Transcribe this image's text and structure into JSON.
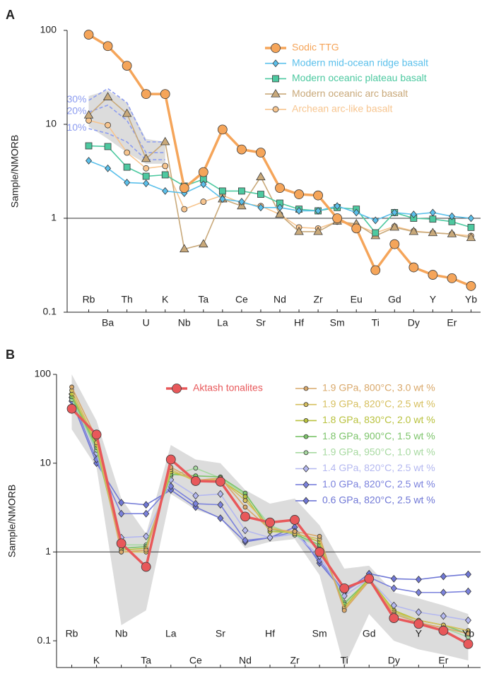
{
  "chart_data": [
    {
      "type": "line",
      "panel_label": "A",
      "y_label": "Sample/NMORB",
      "log_y": true,
      "ylim": [
        0.1,
        100
      ],
      "yticks": [
        0.1,
        1,
        10,
        100
      ],
      "reference_line": 1,
      "categories": [
        "Rb",
        "Ba",
        "Th",
        "U",
        "K",
        "Nb",
        "Ta",
        "La",
        "Ce",
        "Sr",
        "Nd",
        "Hf",
        "Zr",
        "Sm",
        "Eu",
        "Ti",
        "Gd",
        "Dy",
        "Y",
        "Er",
        "Yb"
      ],
      "band": {
        "color": "#dcdcdc",
        "lower": [
          9.5,
          7,
          5,
          3.8,
          3.8,
          null,
          null,
          null,
          null,
          null,
          null,
          null,
          null,
          null,
          null,
          null,
          null,
          null,
          null,
          null,
          null
        ],
        "upper": [
          20,
          23,
          17,
          7,
          6.5,
          null,
          null,
          null,
          null,
          null,
          null,
          null,
          null,
          null,
          null,
          null,
          null,
          null,
          null,
          null,
          null
        ]
      },
      "melt_curves": [
        {
          "name": "30%",
          "color": "#8c9cf0",
          "values": [
            18,
            24,
            17,
            6.5,
            6.5,
            null,
            null,
            null,
            null,
            null,
            null,
            null,
            null,
            null,
            null,
            null,
            null,
            null,
            null,
            null,
            null
          ]
        },
        {
          "name": "20%",
          "color": "#8c9cf0",
          "values": [
            13.5,
            16,
            11,
            5,
            5,
            null,
            null,
            null,
            null,
            null,
            null,
            null,
            null,
            null,
            null,
            null,
            null,
            null,
            null,
            null,
            null
          ]
        },
        {
          "name": "10%",
          "color": "#8c9cf0",
          "values": [
            9,
            8,
            6.5,
            4.2,
            4.2,
            null,
            null,
            null,
            null,
            null,
            null,
            null,
            null,
            null,
            null,
            null,
            null,
            null,
            null,
            null,
            null
          ]
        }
      ],
      "series": [
        {
          "name": "Sodic TTG",
          "color": "#f5a55a",
          "marker": "circle",
          "emphasis": true,
          "values": [
            90,
            68,
            42,
            21,
            21,
            2.1,
            3.1,
            8.8,
            5.4,
            5.0,
            2.1,
            1.8,
            1.75,
            1.0,
            0.78,
            0.28,
            0.53,
            0.3,
            0.25,
            0.23,
            0.19
          ]
        },
        {
          "name": "Modern mid-ocean ridge basalt",
          "color": "#5bc0eb",
          "marker": "diamond",
          "emphasis": false,
          "values": [
            4.1,
            3.4,
            2.4,
            2.35,
            1.95,
            1.85,
            2.3,
            1.6,
            1.5,
            1.3,
            1.3,
            1.2,
            1.2,
            1.35,
            1.15,
            0.95,
            1.15,
            1.1,
            1.15,
            1.05,
            1.0
          ]
        },
        {
          "name": "Modern oceanic plateau basalt",
          "color": "#4dc9a0",
          "marker": "square",
          "emphasis": false,
          "values": [
            5.9,
            5.8,
            3.5,
            2.8,
            2.9,
            2.2,
            2.6,
            1.95,
            1.95,
            1.8,
            1.45,
            1.25,
            1.2,
            1.3,
            1.25,
            0.7,
            1.15,
            1.0,
            0.98,
            0.92,
            0.8
          ]
        },
        {
          "name": "Modern oceanic arc basalt",
          "color": "#c9a97a",
          "marker": "triangle",
          "emphasis": false,
          "values": [
            12.5,
            19.5,
            13,
            4.3,
            6.5,
            0.47,
            0.53,
            1.6,
            1.35,
            2.75,
            1.1,
            0.72,
            0.72,
            0.93,
            0.87,
            0.65,
            0.8,
            0.72,
            0.7,
            0.68,
            0.62
          ]
        },
        {
          "name": "Archean arc-like basalt",
          "color": "#f7c58f",
          "marker": "circle",
          "emphasis": false,
          "values": [
            11,
            9.8,
            5.0,
            3.4,
            3.6,
            1.25,
            1.5,
            1.75,
            1.45,
            1.35,
            1.1,
            0.8,
            0.78,
            0.92,
            0.85,
            0.7,
            0.82,
            0.73,
            0.7,
            0.68,
            0.65
          ]
        }
      ]
    },
    {
      "type": "line",
      "panel_label": "B",
      "y_label": "Sample/NMORB",
      "log_y": true,
      "ylim": [
        0.05,
        100
      ],
      "yticks": [
        0.1,
        1,
        10,
        100
      ],
      "reference_line": 1,
      "categories": [
        "Rb",
        "K",
        "Nb",
        "Ta",
        "La",
        "Ce",
        "Sr",
        "Nd",
        "Hf",
        "Zr",
        "Sm",
        "Ti",
        "Gd",
        "Dy",
        "Y",
        "Er",
        "Yb"
      ],
      "band": {
        "color": "#dcdcdc",
        "lower": [
          24,
          9,
          0.15,
          0.22,
          4.5,
          3.0,
          2.4,
          1.1,
          1.3,
          1.4,
          0.55,
          0.05,
          0.2,
          0.1,
          0.08,
          0.07,
          0.06
        ],
        "upper": [
          100,
          30,
          4,
          1.6,
          16,
          11,
          10,
          5,
          3.5,
          4,
          2.0,
          0.65,
          0.7,
          0.35,
          0.3,
          0.25,
          0.2
        ]
      },
      "series": [
        {
          "name": "Aktash tonalites",
          "color": "#e8585a",
          "marker": "circle",
          "emphasis": true,
          "values": [
            41,
            21,
            1.25,
            0.68,
            11,
            6.3,
            6.2,
            2.5,
            2.15,
            2.3,
            1.0,
            0.39,
            0.5,
            0.18,
            0.155,
            0.13,
            0.092
          ]
        },
        {
          "name": "1.9 GPa, 800°C, 3.0 wt %",
          "color": "#d9a86a",
          "marker": "circle",
          "emphasis": false,
          "values": [
            72,
            19,
            1.0,
            1.05,
            9,
            6.4,
            6.8,
            3.2,
            1.8,
            1.7,
            1.5,
            0.22,
            0.47,
            0.2,
            0.16,
            0.14,
            0.12
          ]
        },
        {
          "name": "1.9 GPa, 820°C, 2.5 wt %",
          "color": "#d6bf5e",
          "marker": "circle",
          "emphasis": false,
          "values": [
            66,
            17,
            1.0,
            1.0,
            8.5,
            6.2,
            6.6,
            3.8,
            1.9,
            1.6,
            1.4,
            0.23,
            0.48,
            0.21,
            0.17,
            0.15,
            0.13
          ]
        },
        {
          "name": "1.8 GPa, 830°C, 2.0 wt %",
          "color": "#b9c23e",
          "marker": "circle",
          "emphasis": false,
          "values": [
            60,
            16,
            1.05,
            1.1,
            8.0,
            6.5,
            6.5,
            4.2,
            1.7,
            1.65,
            1.3,
            0.24,
            0.5,
            0.22,
            0.17,
            0.15,
            0.13
          ]
        },
        {
          "name": "1.8 GPa, 900°C, 1.5 wt %",
          "color": "#7cc46a",
          "marker": "circle",
          "emphasis": false,
          "values": [
            56,
            15,
            1.1,
            1.15,
            7.5,
            7.2,
            7.0,
            4.6,
            1.8,
            1.6,
            1.2,
            0.26,
            0.5,
            0.22,
            0.17,
            0.15,
            0.12
          ]
        },
        {
          "name": "1.9 GPa, 950°C, 1.0 wt %",
          "color": "#a7d9a0",
          "marker": "circle",
          "emphasis": false,
          "values": [
            52,
            14,
            1.2,
            1.2,
            7.2,
            8.8,
            6.8,
            4.4,
            2.0,
            1.55,
            1.15,
            0.27,
            0.48,
            0.21,
            0.16,
            0.14,
            0.11
          ]
        },
        {
          "name": "1.4 GPa, 820°C, 2.5 wt %",
          "color": "#b4b8f0",
          "marker": "diamond",
          "emphasis": false,
          "values": [
            60,
            13,
            1.45,
            1.5,
            6.5,
            4.3,
            4.5,
            1.75,
            1.45,
            1.6,
            0.9,
            0.32,
            0.5,
            0.25,
            0.21,
            0.19,
            0.17
          ]
        },
        {
          "name": "1.0 GPa, 820°C, 2.5 wt %",
          "color": "#7b82dd",
          "marker": "diamond",
          "emphasis": false,
          "values": [
            55,
            11,
            2.7,
            2.7,
            5.5,
            3.5,
            3.4,
            1.35,
            1.45,
            1.7,
            0.8,
            0.36,
            0.52,
            0.39,
            0.35,
            0.35,
            0.36
          ]
        },
        {
          "name": "0.6 GPa, 820°C, 2.5 wt %",
          "color": "#6f77d6",
          "marker": "diamond",
          "emphasis": false,
          "values": [
            50,
            10,
            3.6,
            3.4,
            5.0,
            3.2,
            2.4,
            1.3,
            1.45,
            1.9,
            0.75,
            0.35,
            0.57,
            0.5,
            0.49,
            0.53,
            0.56
          ]
        }
      ]
    }
  ]
}
